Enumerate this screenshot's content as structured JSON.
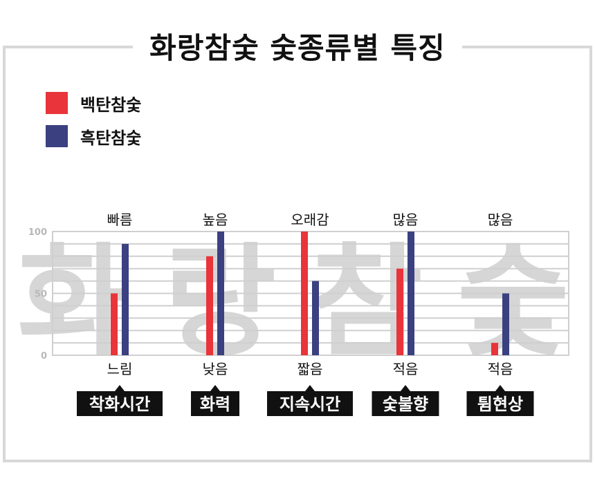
{
  "title": "화랑참숯 숯종류별 특징",
  "watermark": "화랑참숯",
  "colors": {
    "series_white": "#e8343a",
    "series_black": "#3b4080",
    "grid": "#cfcfcf",
    "tag_bg": "#111111"
  },
  "legend": [
    {
      "label": "백탄참숯",
      "color": "#e8343a"
    },
    {
      "label": "흑탄참숯",
      "color": "#3b4080"
    }
  ],
  "chart_data": {
    "type": "bar",
    "categories": [
      "착화시간",
      "화력",
      "지속시간",
      "숯불향",
      "튐현상"
    ],
    "top_labels": [
      "빠름",
      "높음",
      "오래감",
      "많음",
      "많음"
    ],
    "bottom_labels": [
      "느림",
      "낮음",
      "짧음",
      "적음",
      "적음"
    ],
    "series": [
      {
        "name": "백탄참숯",
        "values": [
          50,
          80,
          100,
          70,
          10
        ],
        "color": "#e8343a"
      },
      {
        "name": "흑탄참숯",
        "values": [
          90,
          100,
          60,
          100,
          50
        ],
        "color": "#3b4080"
      }
    ],
    "ylim": [
      0,
      100
    ],
    "yticks": [
      0,
      50,
      100
    ],
    "grid": true,
    "legend_position": "top-left"
  }
}
